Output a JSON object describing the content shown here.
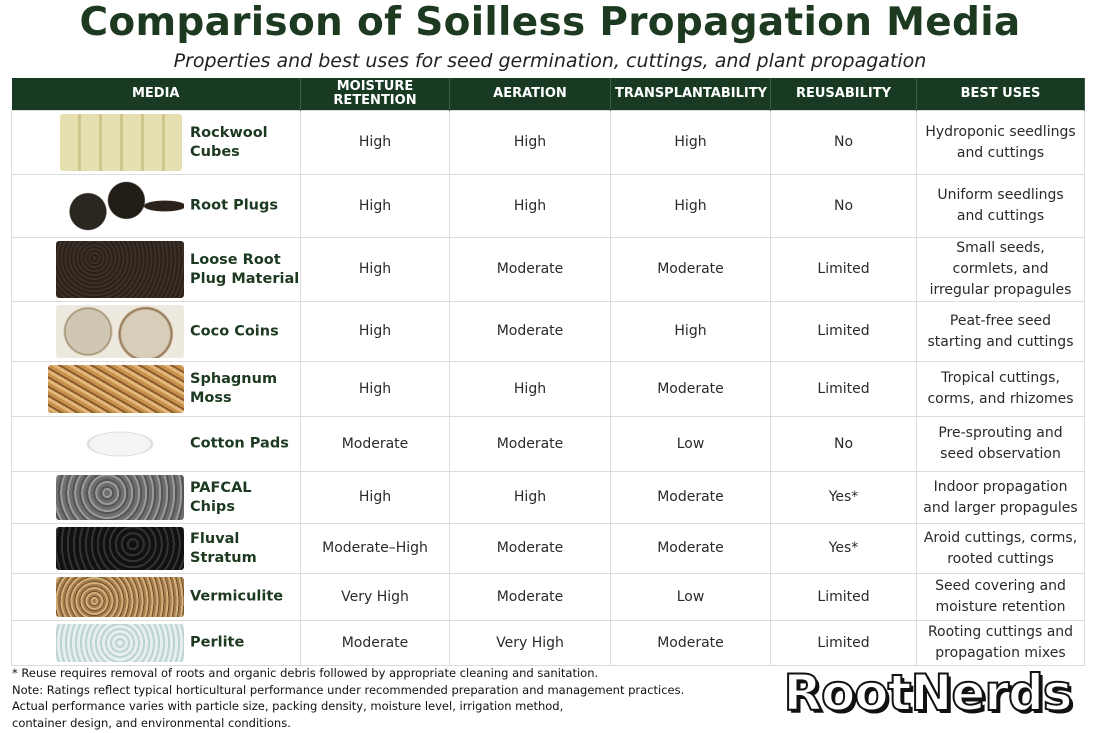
{
  "header": {
    "title": "Comparison of Soilless Propagation Media",
    "subtitle": "Properties and best uses for seed germination, cuttings, and plant propagation"
  },
  "table": {
    "columns": [
      "MEDIA",
      "MOISTURE RETENTION",
      "AERATION",
      "TRANSPLANTABILITY",
      "REUSABILITY",
      "BEST USES"
    ],
    "rows": [
      [
        "Rockwool Cubes",
        "High",
        "High",
        "High",
        "No",
        "Hydroponic seedlings and cuttings"
      ],
      [
        "Root Plugs",
        "High",
        "High",
        "High",
        "No",
        "Uniform seedlings and cuttings"
      ],
      [
        "Loose Root Plug Material",
        "High",
        "Moderate",
        "Moderate",
        "Limited",
        "Small seeds, cormlets, and irregular propagules"
      ],
      [
        "Coco Coins",
        "High",
        "Moderate",
        "High",
        "Limited",
        "Peat-free seed starting and cuttings"
      ],
      [
        "Sphagnum Moss",
        "High",
        "High",
        "Moderate",
        "Limited",
        "Tropical cuttings, corms, and rhizomes"
      ],
      [
        "Cotton Pads",
        "Moderate",
        "Moderate",
        "Low",
        "No",
        "Pre-sprouting and seed observation"
      ],
      [
        "PAFCAL Chips",
        "High",
        "High",
        "Moderate",
        "Yes*",
        "Indoor propagation and larger propagules"
      ],
      [
        "Fluval Stratum",
        "Moderate–High",
        "Moderate",
        "Moderate",
        "Yes*",
        "Aroid cuttings, corms, rooted cuttings"
      ],
      [
        "Vermiculite",
        "Very High",
        "Moderate",
        "Low",
        "Limited",
        "Seed covering and moisture retention"
      ],
      [
        "Perlite",
        "Moderate",
        "Very High",
        "Moderate",
        "Limited",
        "Rooting cuttings and propagation mixes"
      ]
    ]
  },
  "footer": {
    "notes": [
      "*  Reuse requires removal of roots and organic debris followed by appropriate cleaning and sanitation.",
      "Note: Ratings reflect typical horticultural performance under recommended preparation and management practices.",
      "Actual performance varies with particle size, packing density, moisture level, irrigation method,",
      "container design, and environmental conditions."
    ],
    "logo": "RootNerds"
  }
}
